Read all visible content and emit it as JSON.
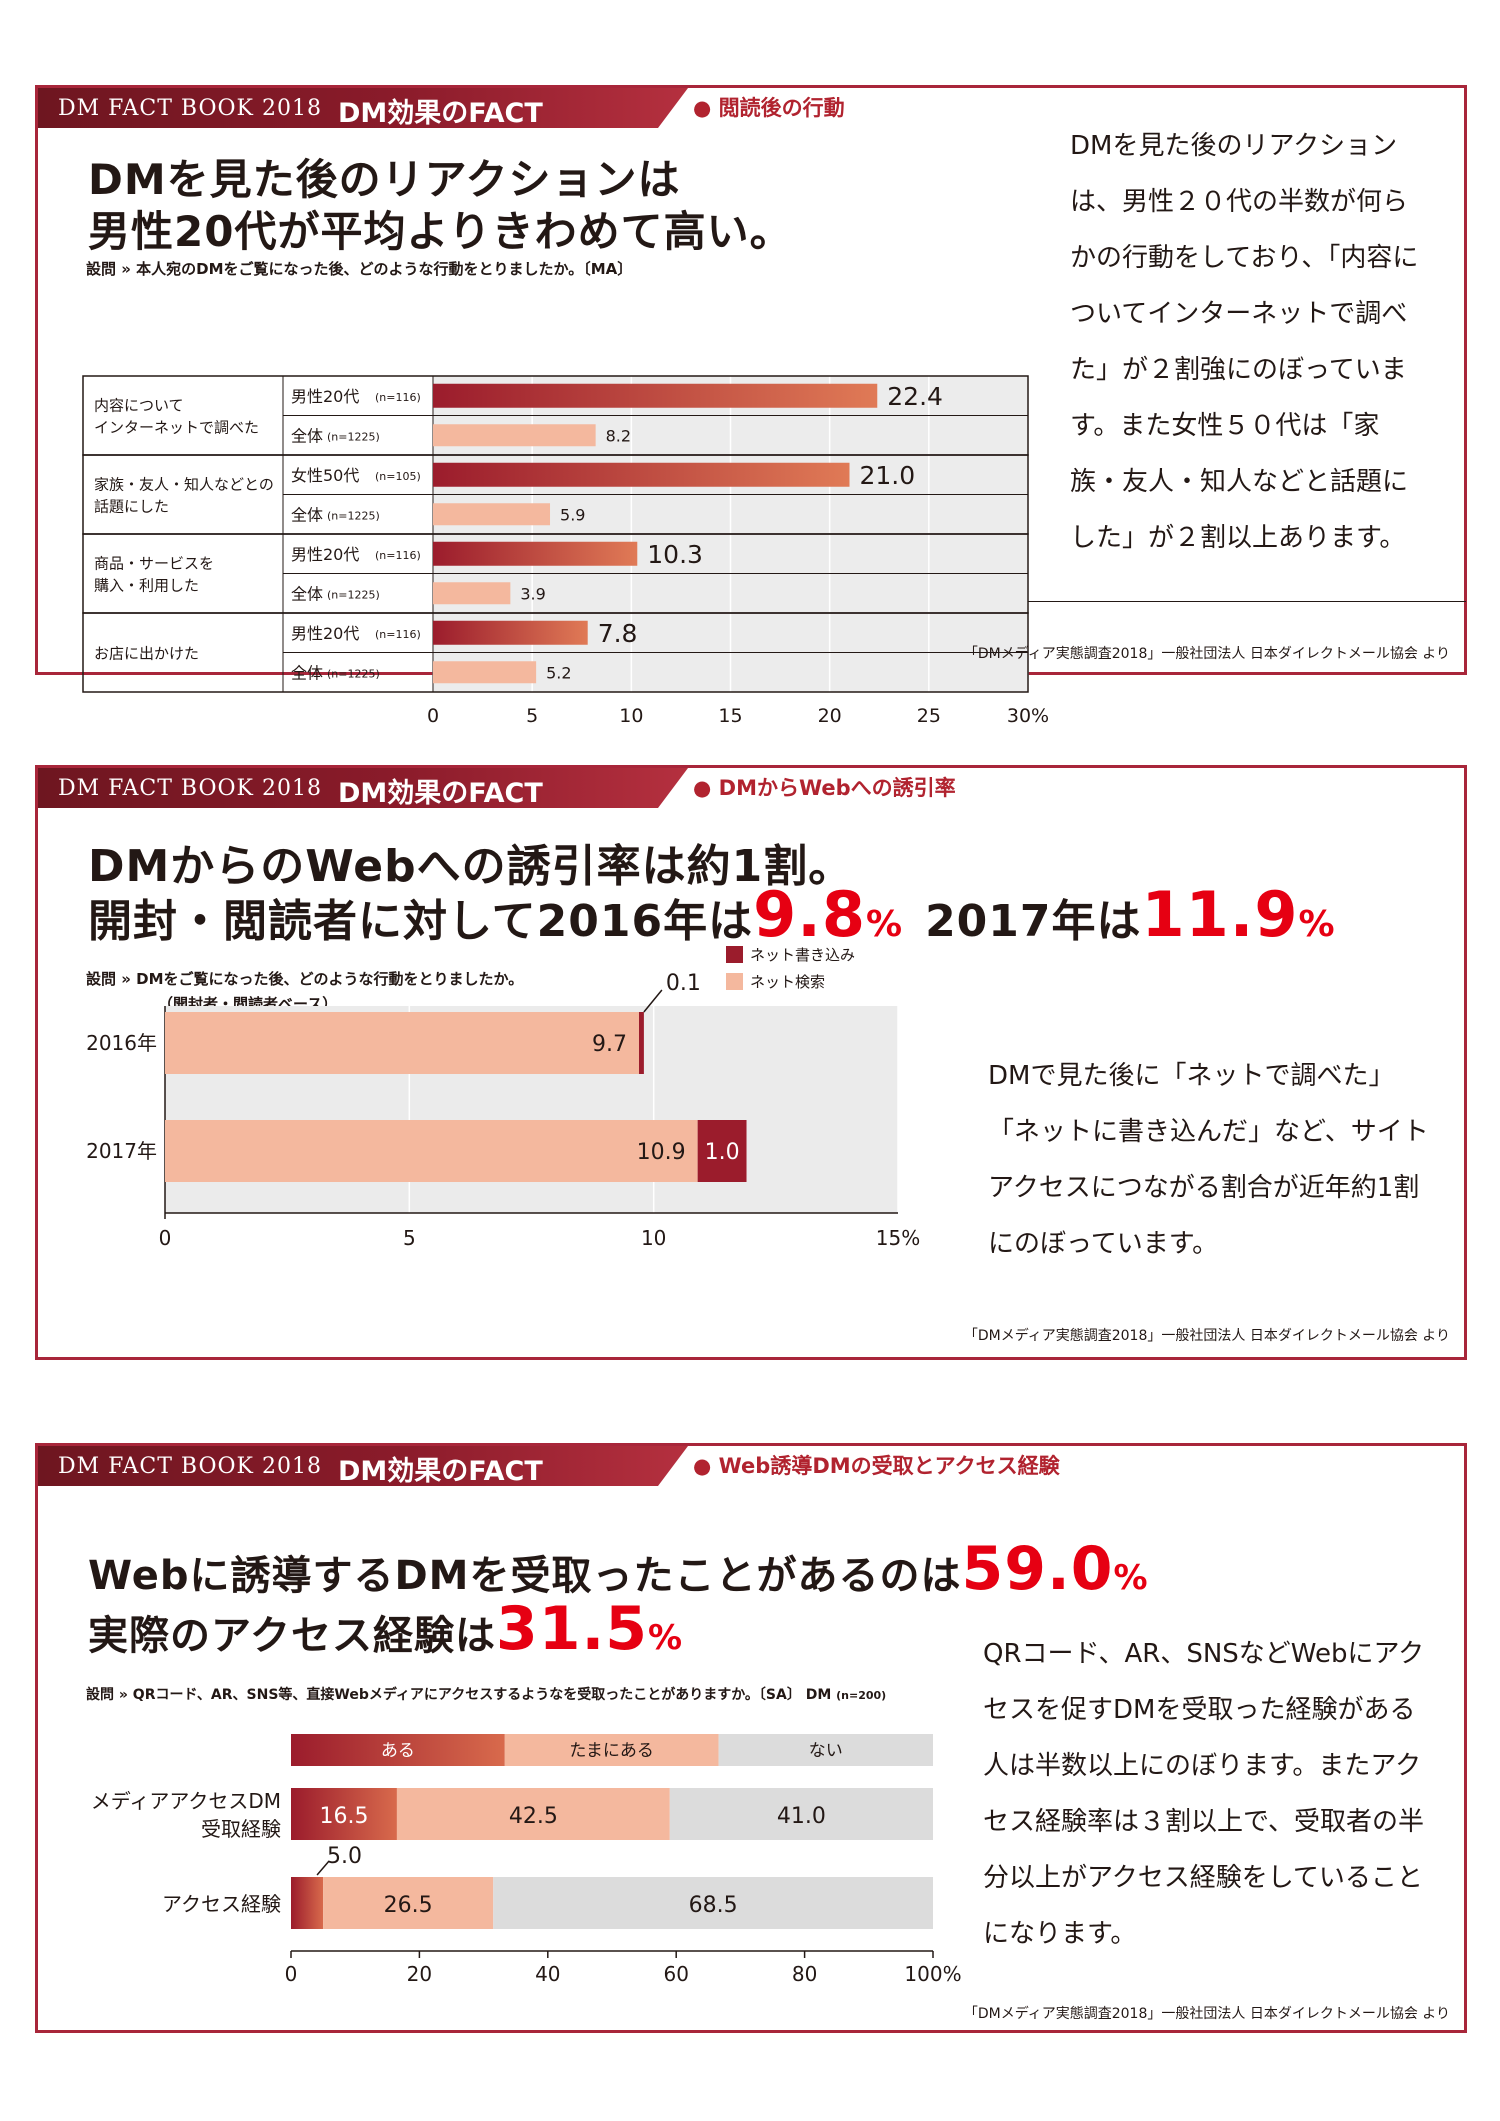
{
  "brand": {
    "book": "DM FACT BOOK 2018",
    "fact": "DM効果のFACT"
  },
  "colors": {
    "accent": "#a8263a",
    "dark_bar": "#9b1c2c",
    "light_bar": "#f4b89e",
    "gray_bar": "#dcdcdc",
    "headline_red": "#e60012"
  },
  "source": "「DMメディア実態調査2018」一般社団法人 日本ダイレクトメール協会 より",
  "panel1": {
    "tag": "閲読後の行動",
    "title_line1": "DMを見た後のリアクションは",
    "title_line2": "男性20代が平均よりきわめて高い。",
    "question": "設問 » 本人宛のDMをご覧になった後、どのような行動をとりましたか。〔MA〕",
    "side_text": "DMを見た後のリアクションは、男性２０代の半数が何らかの行動をしており、「内容についてインターネットで調べた」が２割強にのぼっています。また女性５０代は「家族・友人・知人などと話題にした」が２割以上あります。"
  },
  "panel2": {
    "tag": "DMからWebへの誘引率",
    "title_line1": "DMからのWebへの誘引率は約1割。",
    "title_line2a": "開封・閲読者に対して2016年は",
    "title_line2b": "9.8",
    "title_pct": "%",
    "title_line2c": "2017年は",
    "title_line2d": "11.9",
    "question_line1": "設問 » DMをご覧になった後、どのような行動をとりましたか。",
    "question_line2": "（開封者・閲読者ベース）",
    "side_text": "DMで見た後に「ネットで調べた」「ネットに書き込んだ」など、サイトアクセスにつながる割合が近年約1割にのぼっています。"
  },
  "panel3": {
    "tag": "Web誘導DMの受取とアクセス経験",
    "title_line1a": "Webに誘導するDMを受取ったことがあるのは",
    "title_line1b": "59.0",
    "title_line2a": "実際のアクセス経験は",
    "title_line2b": "31.5",
    "title_pct": "%",
    "question": "設問 » QRコード、AR、SNS等、直接Webメディアにアクセスするようなを受取ったことがありますか。〔SA〕",
    "question_dm": "DM",
    "question_n": "(n=200)",
    "side_text": "QRコード、AR、SNSなどWebにアクセスを促すDMを受取った経験がある人は半数以上にのぼります。またアクセス経験率は３割以上で、受取者の半分以上がアクセス経験をしていることになります。"
  },
  "chart_data": [
    {
      "type": "bar",
      "orientation": "horizontal",
      "xlim": [
        0,
        30
      ],
      "ticks": [
        "0",
        "5",
        "10",
        "15",
        "20",
        "25",
        "30%"
      ],
      "groups": [
        {
          "label_lines": [
            "内容について",
            "インターネットで調べた"
          ],
          "bars": [
            {
              "label": "男性20代",
              "n": "(n=116)",
              "value": 22.4,
              "value_text": "22.4",
              "highlight": true
            },
            {
              "label": "全体",
              "n": "(n=1225)",
              "value": 8.2,
              "value_text": "8.2",
              "highlight": false
            }
          ]
        },
        {
          "label_lines": [
            "家族・友人・知人などとの",
            "話題にした"
          ],
          "bars": [
            {
              "label": "女性50代",
              "n": "(n=105)",
              "value": 21.0,
              "value_text": "21.0",
              "highlight": true
            },
            {
              "label": "全体",
              "n": "(n=1225)",
              "value": 5.9,
              "value_text": "5.9",
              "highlight": false
            }
          ]
        },
        {
          "label_lines": [
            "商品・サービスを",
            "購入・利用した"
          ],
          "bars": [
            {
              "label": "男性20代",
              "n": "(n=116)",
              "value": 10.3,
              "value_text": "10.3",
              "highlight": true
            },
            {
              "label": "全体",
              "n": "(n=1225)",
              "value": 3.9,
              "value_text": "3.9",
              "highlight": false
            }
          ]
        },
        {
          "label_lines": [
            "お店に出かけた"
          ],
          "bars": [
            {
              "label": "男性20代",
              "n": "(n=116)",
              "value": 7.8,
              "value_text": "7.8",
              "highlight": true
            },
            {
              "label": "全体",
              "n": "(n=1225)",
              "value": 5.2,
              "value_text": "5.2",
              "highlight": false
            }
          ]
        }
      ]
    },
    {
      "type": "bar",
      "orientation": "horizontal",
      "stacked": true,
      "categories": [
        "2016年",
        "2017年"
      ],
      "series": [
        {
          "name": "ネット検索",
          "values": [
            9.7,
            10.9
          ],
          "labels": [
            "9.7",
            "10.9"
          ]
        },
        {
          "name": "ネット書き込み",
          "values": [
            0.1,
            1.0
          ],
          "labels": [
            "0.1",
            "1.0"
          ]
        }
      ],
      "xlim": [
        0,
        15
      ],
      "ticks": [
        "0",
        "5",
        "10",
        "15%"
      ],
      "legend": "top-right"
    },
    {
      "type": "bar",
      "orientation": "horizontal",
      "stacked": true,
      "percent": true,
      "legend_inline": [
        {
          "name": "ある",
          "value": 33.3
        },
        {
          "name": "たまにある",
          "value": 33.3
        },
        {
          "name": "ない",
          "value": 33.4
        }
      ],
      "categories": [
        [
          "メディアアクセスDM",
          "受取経験"
        ],
        [
          "アクセス経験"
        ]
      ],
      "series": [
        {
          "name": "ある",
          "values": [
            16.5,
            5.0
          ],
          "labels": [
            "16.5",
            "5.0"
          ]
        },
        {
          "name": "たまにある",
          "values": [
            42.5,
            26.5
          ],
          "labels": [
            "42.5",
            "26.5"
          ]
        },
        {
          "name": "ない",
          "values": [
            41.0,
            68.5
          ],
          "labels": [
            "41.0",
            "68.5"
          ]
        }
      ],
      "xlim": [
        0,
        100
      ],
      "ticks": [
        "0",
        "20",
        "40",
        "60",
        "80",
        "100%"
      ]
    }
  ]
}
